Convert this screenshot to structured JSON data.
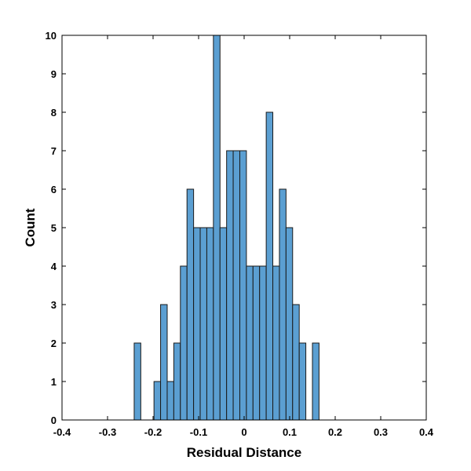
{
  "colors": {
    "bar_fill": "#5b9fd2",
    "bar_stroke": "#1a1a1a",
    "axis": "#000000",
    "background": "#ffffff"
  },
  "chart_data": {
    "type": "bar",
    "subtype": "histogram",
    "title": "",
    "xlabel": "Residual Distance",
    "ylabel": "Count",
    "xlim": [
      -0.4,
      0.4
    ],
    "ylim": [
      0,
      10
    ],
    "grid": false,
    "legend": "none",
    "box": true,
    "bin_width": 0.0145,
    "bins": [
      {
        "start": -0.2415,
        "end": -0.227,
        "count": 2
      },
      {
        "start": -0.198,
        "end": -0.1835,
        "count": 1
      },
      {
        "start": -0.1835,
        "end": -0.169,
        "count": 3
      },
      {
        "start": -0.169,
        "end": -0.1545,
        "count": 1
      },
      {
        "start": -0.1545,
        "end": -0.14,
        "count": 2
      },
      {
        "start": -0.14,
        "end": -0.1255,
        "count": 4
      },
      {
        "start": -0.1255,
        "end": -0.111,
        "count": 6
      },
      {
        "start": -0.111,
        "end": -0.0965,
        "count": 5
      },
      {
        "start": -0.0965,
        "end": -0.082,
        "count": 5
      },
      {
        "start": -0.082,
        "end": -0.0675,
        "count": 5
      },
      {
        "start": -0.0675,
        "end": -0.053,
        "count": 10
      },
      {
        "start": -0.053,
        "end": -0.0385,
        "count": 5
      },
      {
        "start": -0.0385,
        "end": -0.024,
        "count": 7
      },
      {
        "start": -0.024,
        "end": -0.0095,
        "count": 7
      },
      {
        "start": -0.0095,
        "end": 0.005,
        "count": 7
      },
      {
        "start": 0.005,
        "end": 0.0195,
        "count": 4
      },
      {
        "start": 0.0195,
        "end": 0.034,
        "count": 4
      },
      {
        "start": 0.034,
        "end": 0.0485,
        "count": 4
      },
      {
        "start": 0.0485,
        "end": 0.063,
        "count": 8
      },
      {
        "start": 0.063,
        "end": 0.0775,
        "count": 4
      },
      {
        "start": 0.0775,
        "end": 0.092,
        "count": 6
      },
      {
        "start": 0.092,
        "end": 0.1065,
        "count": 5
      },
      {
        "start": 0.1065,
        "end": 0.121,
        "count": 3
      },
      {
        "start": 0.121,
        "end": 0.1355,
        "count": 2
      },
      {
        "start": 0.15,
        "end": 0.1645,
        "count": 2
      }
    ],
    "x_ticks": [
      {
        "value": -0.4,
        "label": "-0.4"
      },
      {
        "value": -0.3,
        "label": "-0.3"
      },
      {
        "value": -0.2,
        "label": "-0.2"
      },
      {
        "value": -0.1,
        "label": "-0.1"
      },
      {
        "value": 0,
        "label": "0"
      },
      {
        "value": 0.1,
        "label": "0.1"
      },
      {
        "value": 0.2,
        "label": "0.2"
      },
      {
        "value": 0.3,
        "label": "0.3"
      },
      {
        "value": 0.4,
        "label": "0.4"
      }
    ],
    "y_ticks": [
      {
        "value": 0,
        "label": "0"
      },
      {
        "value": 1,
        "label": "1"
      },
      {
        "value": 2,
        "label": "2"
      },
      {
        "value": 3,
        "label": "3"
      },
      {
        "value": 4,
        "label": "4"
      },
      {
        "value": 5,
        "label": "5"
      },
      {
        "value": 6,
        "label": "6"
      },
      {
        "value": 7,
        "label": "7"
      },
      {
        "value": 8,
        "label": "8"
      },
      {
        "value": 9,
        "label": "9"
      },
      {
        "value": 10,
        "label": "10"
      }
    ]
  }
}
